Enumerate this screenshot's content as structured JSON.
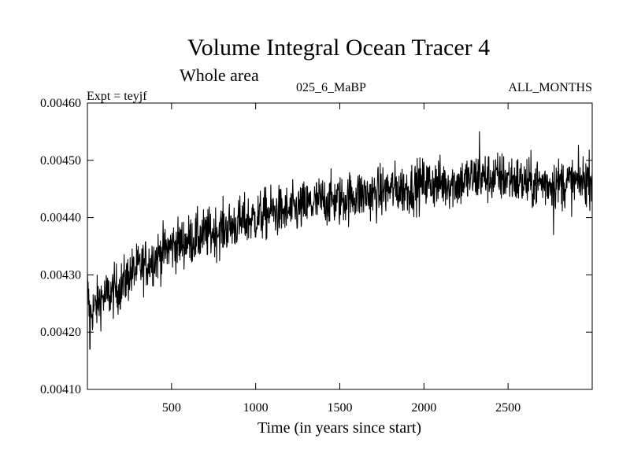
{
  "chart_data": {
    "type": "line",
    "title": "Volume Integral Ocean Tracer 4",
    "subtitle": "Whole area",
    "experiment_label": "Expt = teyjf",
    "run_label": "025_6_MaBP",
    "months_label": "ALL_MONTHS",
    "xlabel": "Time (in years since start)",
    "ylabel": "",
    "xlim": [
      0,
      3000
    ],
    "ylim": [
      0.0041,
      0.0046
    ],
    "x_ticks": [
      500,
      1000,
      1500,
      2000,
      2500
    ],
    "x_tick_labels": [
      "500",
      "1000",
      "1500",
      "2000",
      "2500"
    ],
    "y_ticks": [
      0.0041,
      0.0042,
      0.0043,
      0.0044,
      0.0045,
      0.0046
    ],
    "y_tick_labels": [
      "0.00410",
      "0.00420",
      "0.00430",
      "0.00440",
      "0.00450",
      "0.00460"
    ],
    "grid": false,
    "series": [
      {
        "name": "Volume Integral Ocean Tracer 4",
        "color": "#000000",
        "x": [
          0,
          10,
          20,
          30,
          40,
          60,
          80,
          100,
          150,
          200,
          250,
          300,
          350,
          400,
          450,
          500,
          600,
          700,
          800,
          900,
          1000,
          1100,
          1200,
          1300,
          1400,
          1500,
          1600,
          1700,
          1800,
          1900,
          2000,
          2100,
          2200,
          2300,
          2400,
          2500,
          2600,
          2700,
          2800,
          2900,
          3000
        ],
        "values": [
          0.00428,
          0.00424,
          0.00423,
          0.00424,
          0.00424,
          0.00425,
          0.00426,
          0.00426,
          0.00427,
          0.00428,
          0.0043,
          0.00431,
          0.00432,
          0.00433,
          0.00434,
          0.00435,
          0.00436,
          0.00437,
          0.00438,
          0.00439,
          0.0044,
          0.00441,
          0.00441,
          0.00442,
          0.00443,
          0.00443,
          0.00444,
          0.00444,
          0.00445,
          0.00445,
          0.00446,
          0.00446,
          0.00446,
          0.00447,
          0.00447,
          0.00447,
          0.00446,
          0.00446,
          0.00446,
          0.00446,
          0.00447
        ],
        "variability": "high-frequency noise of about ±0.00005 around the trend",
        "notable_points": [
          {
            "x": 15,
            "y": 0.00417
          },
          {
            "x": 2330,
            "y": 0.00455
          },
          {
            "x": 2770,
            "y": 0.00437
          }
        ]
      }
    ]
  }
}
